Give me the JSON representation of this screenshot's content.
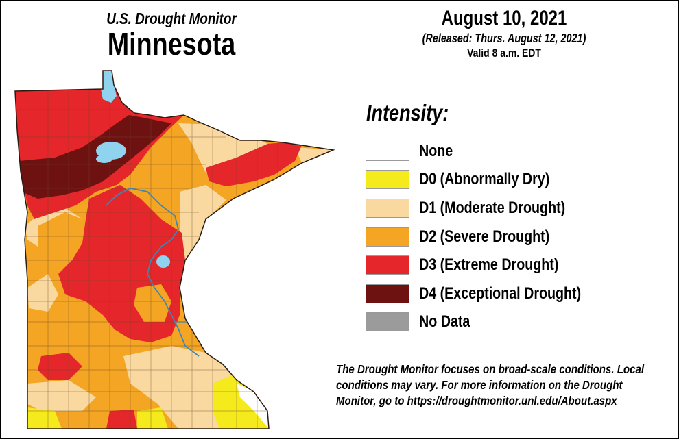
{
  "header": {
    "org": "U.S. Drought Monitor",
    "state": "Minnesota"
  },
  "dates": {
    "date": "August 10, 2021",
    "released": "(Released: Thurs. August 12, 2021)",
    "valid": "Valid 8 a.m. EDT"
  },
  "legend": {
    "title": "Intensity:",
    "items": [
      {
        "label": "None",
        "color": "#ffffff"
      },
      {
        "label": "D0 (Abnormally Dry)",
        "color": "#f5ea1c"
      },
      {
        "label": "D1 (Moderate Drought)",
        "color": "#f9d9a0"
      },
      {
        "label": "D2 (Severe Drought)",
        "color": "#f4a523"
      },
      {
        "label": "D3 (Extreme Drought)",
        "color": "#e5262a"
      },
      {
        "label": "D4 (Exceptional Drought)",
        "color": "#6e1211"
      },
      {
        "label": "No Data",
        "color": "#9b9b9b"
      }
    ]
  },
  "note": {
    "line1": "The Drought Monitor focuses on broad-scale conditions. Local",
    "line2": "conditions may vary. For more information on the Drought",
    "line3": "Monitor, go to https://droughtmonitor.unl.edu/About.aspx"
  },
  "map_colors": {
    "water": "#8fd3ef",
    "county_lines": "#6b4a2a"
  }
}
